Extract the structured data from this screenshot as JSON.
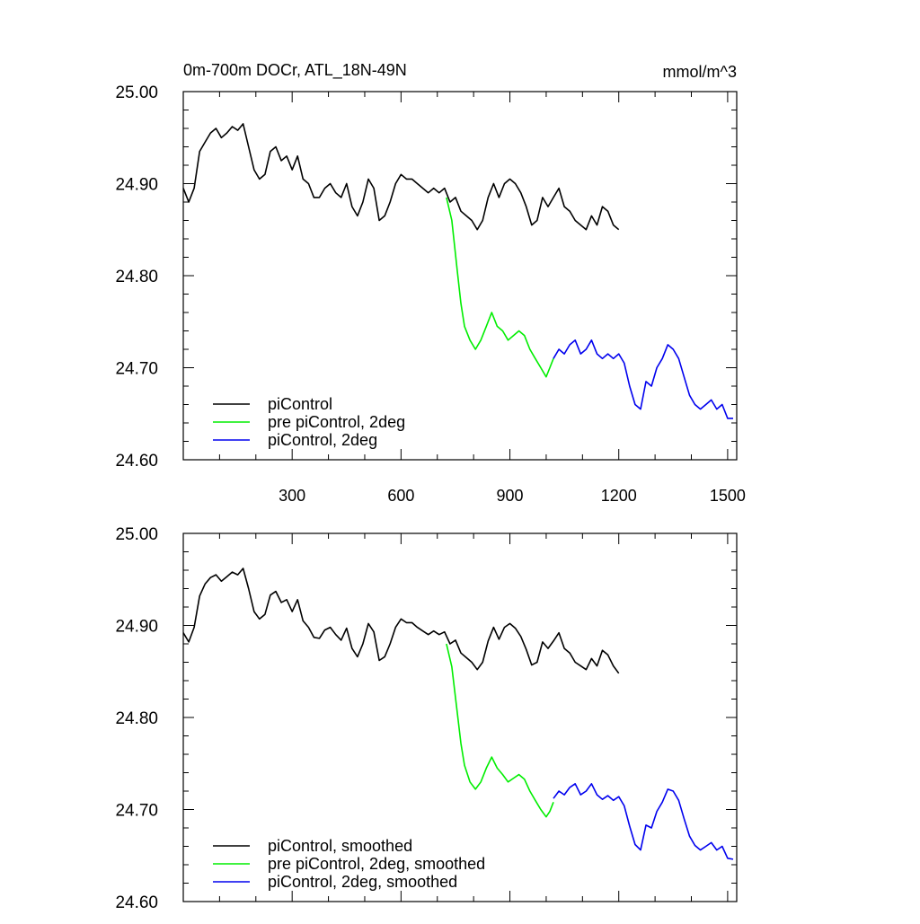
{
  "chart_data": [
    {
      "type": "line",
      "title": "0m-700m DOCr, ATL_18N-49N",
      "units": "mmol/m^3",
      "xlim": [
        0,
        1525
      ],
      "ylim": [
        24.6,
        25.0
      ],
      "x_ticks": [
        300,
        600,
        900,
        1200,
        1500
      ],
      "x_tick_labels": [
        "300",
        "600",
        "900",
        "1200",
        "1500"
      ],
      "y_ticks": [
        24.6,
        24.7,
        24.8,
        24.9,
        25.0
      ],
      "y_tick_labels": [
        "24.60",
        "24.70",
        "24.80",
        "24.90",
        "25.00"
      ],
      "grid": false,
      "legend_position": "bottom-left",
      "series": [
        {
          "name": "piControl",
          "color": "#000000",
          "x": [
            0,
            15,
            30,
            45,
            60,
            75,
            90,
            105,
            120,
            135,
            150,
            165,
            180,
            195,
            210,
            225,
            240,
            255,
            270,
            285,
            300,
            315,
            330,
            345,
            360,
            375,
            390,
            405,
            420,
            435,
            450,
            465,
            480,
            495,
            510,
            525,
            540,
            555,
            570,
            585,
            600,
            615,
            630,
            645,
            660,
            675,
            690,
            705,
            720,
            735,
            750,
            765,
            780,
            795,
            810,
            825,
            840,
            855,
            870,
            885,
            900,
            915,
            930,
            945,
            960,
            975,
            990,
            1005,
            1020,
            1035,
            1050,
            1065,
            1080,
            1095,
            1110,
            1125,
            1140,
            1155,
            1170,
            1185,
            1200
          ],
          "y": [
            24.895,
            24.88,
            24.895,
            24.935,
            24.945,
            24.955,
            24.96,
            24.95,
            24.955,
            24.962,
            24.958,
            24.965,
            24.94,
            24.915,
            24.905,
            24.91,
            24.935,
            24.94,
            24.925,
            24.93,
            24.915,
            24.93,
            24.905,
            24.9,
            24.885,
            24.885,
            24.895,
            24.9,
            24.89,
            24.885,
            24.9,
            24.875,
            24.865,
            24.88,
            24.905,
            24.895,
            24.86,
            24.865,
            24.88,
            24.9,
            24.91,
            24.905,
            24.905,
            24.9,
            24.895,
            24.89,
            24.895,
            24.89,
            24.895,
            24.88,
            24.885,
            24.87,
            24.865,
            24.86,
            24.85,
            24.86,
            24.885,
            24.9,
            24.885,
            24.9,
            24.905,
            24.9,
            24.89,
            24.875,
            24.855,
            24.86,
            24.885,
            24.875,
            24.885,
            24.895,
            24.875,
            24.87,
            24.86,
            24.855,
            24.85,
            24.865,
            24.855,
            24.875,
            24.87,
            24.855,
            24.85
          ]
        },
        {
          "name": "pre piControl, 2deg",
          "color": "#00ee00",
          "x": [
            725,
            740,
            755,
            765,
            775,
            790,
            805,
            820,
            835,
            850,
            865,
            880,
            895,
            910,
            925,
            940,
            955,
            970,
            985,
            1000,
            1010,
            1020
          ],
          "y": [
            24.885,
            24.86,
            24.805,
            24.77,
            24.745,
            24.73,
            24.72,
            24.73,
            24.745,
            24.76,
            24.745,
            24.74,
            24.73,
            24.735,
            24.74,
            24.735,
            24.72,
            24.71,
            24.7,
            24.69,
            24.7,
            24.71
          ]
        },
        {
          "name": "piControl, 2deg",
          "color": "#0000ee",
          "x": [
            1020,
            1035,
            1050,
            1065,
            1080,
            1095,
            1110,
            1125,
            1140,
            1155,
            1170,
            1185,
            1200,
            1215,
            1230,
            1245,
            1260,
            1275,
            1290,
            1305,
            1320,
            1335,
            1350,
            1365,
            1380,
            1395,
            1410,
            1425,
            1440,
            1455,
            1470,
            1485,
            1500,
            1515
          ],
          "y": [
            24.71,
            24.72,
            24.715,
            24.725,
            24.73,
            24.715,
            24.72,
            24.73,
            24.715,
            24.71,
            24.715,
            24.71,
            24.715,
            24.705,
            24.68,
            24.66,
            24.655,
            24.685,
            24.68,
            24.7,
            24.71,
            24.725,
            24.72,
            24.71,
            24.69,
            24.67,
            24.66,
            24.655,
            24.66,
            24.665,
            24.655,
            24.66,
            24.645,
            24.645
          ]
        }
      ]
    },
    {
      "type": "line",
      "xlim": [
        0,
        1525
      ],
      "ylim": [
        24.6,
        25.0
      ],
      "x_ticks": [
        300,
        600,
        900,
        1200,
        1500
      ],
      "y_ticks": [
        24.6,
        24.7,
        24.8,
        24.9,
        25.0
      ],
      "y_tick_labels": [
        "24.60",
        "24.70",
        "24.80",
        "24.90",
        "25.00"
      ],
      "grid": false,
      "legend_position": "bottom-left",
      "series": [
        {
          "name": "piControl, smoothed",
          "color": "#000000",
          "x": [
            0,
            15,
            30,
            45,
            60,
            75,
            90,
            105,
            120,
            135,
            150,
            165,
            180,
            195,
            210,
            225,
            240,
            255,
            270,
            285,
            300,
            315,
            330,
            345,
            360,
            375,
            390,
            405,
            420,
            435,
            450,
            465,
            480,
            495,
            510,
            525,
            540,
            555,
            570,
            585,
            600,
            615,
            630,
            645,
            660,
            675,
            690,
            705,
            720,
            735,
            750,
            765,
            780,
            795,
            810,
            825,
            840,
            855,
            870,
            885,
            900,
            915,
            930,
            945,
            960,
            975,
            990,
            1005,
            1020,
            1035,
            1050,
            1065,
            1080,
            1095,
            1110,
            1125,
            1140,
            1155,
            1170,
            1185,
            1200
          ],
          "y": [
            24.892,
            24.882,
            24.898,
            24.932,
            24.945,
            24.952,
            24.955,
            24.948,
            24.953,
            24.958,
            24.955,
            24.962,
            24.94,
            24.915,
            24.907,
            24.912,
            24.933,
            24.937,
            24.925,
            24.928,
            24.915,
            24.928,
            24.905,
            24.898,
            24.887,
            24.886,
            24.895,
            24.898,
            24.89,
            24.884,
            24.897,
            24.875,
            24.866,
            24.88,
            24.902,
            24.893,
            24.862,
            24.866,
            24.88,
            24.898,
            24.907,
            24.903,
            24.903,
            24.898,
            24.894,
            24.89,
            24.894,
            24.89,
            24.893,
            24.88,
            24.884,
            24.87,
            24.865,
            24.86,
            24.852,
            24.86,
            24.883,
            24.898,
            24.885,
            24.898,
            24.902,
            24.897,
            24.888,
            24.874,
            24.857,
            24.86,
            24.882,
            24.875,
            24.883,
            24.892,
            24.875,
            24.87,
            24.86,
            24.856,
            24.852,
            24.864,
            24.856,
            24.873,
            24.868,
            24.856,
            24.848
          ]
        },
        {
          "name": "pre piControl, 2deg, smoothed",
          "color": "#00ee00",
          "x": [
            725,
            740,
            755,
            765,
            775,
            790,
            805,
            820,
            835,
            850,
            865,
            880,
            895,
            910,
            925,
            940,
            955,
            970,
            985,
            1000,
            1010,
            1020
          ],
          "y": [
            24.88,
            24.855,
            24.805,
            24.772,
            24.748,
            24.73,
            24.722,
            24.73,
            24.745,
            24.757,
            24.745,
            24.738,
            24.73,
            24.734,
            24.738,
            24.733,
            24.72,
            24.71,
            24.7,
            24.692,
            24.698,
            24.708
          ]
        },
        {
          "name": "piControl, 2deg, smoothed",
          "color": "#0000ee",
          "x": [
            1020,
            1035,
            1050,
            1065,
            1080,
            1095,
            1110,
            1125,
            1140,
            1155,
            1170,
            1185,
            1200,
            1215,
            1230,
            1245,
            1260,
            1275,
            1290,
            1305,
            1320,
            1335,
            1350,
            1365,
            1380,
            1395,
            1410,
            1425,
            1440,
            1455,
            1470,
            1485,
            1500,
            1515
          ],
          "y": [
            24.712,
            24.72,
            24.716,
            24.724,
            24.728,
            24.716,
            24.72,
            24.728,
            24.716,
            24.711,
            24.715,
            24.71,
            24.714,
            24.704,
            24.682,
            24.662,
            24.656,
            24.683,
            24.68,
            24.698,
            24.708,
            24.722,
            24.72,
            24.71,
            24.69,
            24.671,
            24.661,
            24.656,
            24.66,
            24.664,
            24.656,
            24.66,
            24.647,
            24.646
          ]
        }
      ]
    }
  ]
}
